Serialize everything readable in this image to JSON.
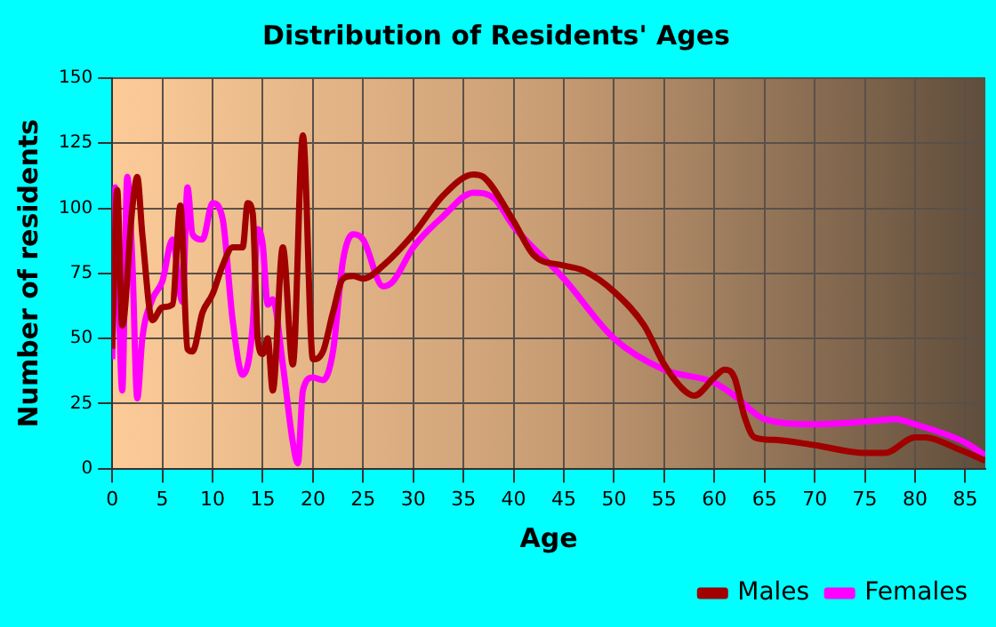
{
  "chart_data": {
    "type": "line",
    "title": "Distribution of Residents' Ages",
    "xlabel": "Age",
    "ylabel": "Number of residents",
    "xlim": [
      0,
      87
    ],
    "xticks": [
      0,
      5,
      10,
      15,
      20,
      25,
      30,
      35,
      40,
      45,
      50,
      55,
      60,
      65,
      70,
      75,
      80,
      85
    ],
    "ylim": [
      0,
      150
    ],
    "yticks": [
      0,
      25,
      50,
      75,
      100,
      125,
      150
    ],
    "grid": true,
    "legend": "bottom right",
    "marker": "none",
    "line_style": "solid",
    "series": [
      {
        "name": "Males",
        "color": "#a00000",
        "x": [
          0,
          0.5,
          1,
          2,
          2.5,
          3,
          4,
          5,
          6,
          6.8,
          7.5,
          8,
          9,
          10,
          11,
          12,
          13,
          13.5,
          14,
          14.5,
          15,
          15.5,
          16,
          17,
          18,
          19,
          20,
          21,
          22,
          23,
          24,
          25,
          27,
          30,
          33,
          36,
          37,
          40,
          42,
          45,
          47,
          50,
          53,
          55,
          57,
          58,
          60,
          61,
          62,
          63,
          64,
          66,
          70,
          75,
          77,
          80,
          81,
          84,
          87
        ],
        "values": [
          46,
          107,
          55,
          100,
          112,
          90,
          57,
          62,
          63,
          101,
          46,
          45,
          60,
          67,
          78,
          85,
          85,
          102,
          98,
          50,
          44,
          50,
          30,
          85,
          40,
          128,
          42,
          45,
          60,
          73,
          74,
          73,
          78,
          90,
          105,
          113,
          112,
          95,
          82,
          78,
          76,
          68,
          55,
          40,
          30,
          28,
          35,
          38,
          35,
          20,
          12,
          11,
          9,
          6,
          6,
          12,
          12,
          8,
          3
        ]
      },
      {
        "name": "Females",
        "color": "#ff00ff",
        "x": [
          0,
          0.3,
          1,
          1.5,
          2,
          2.5,
          3,
          4,
          5,
          6,
          7,
          7.5,
          8,
          9,
          10,
          11,
          12,
          13,
          14,
          14.5,
          15,
          15.5,
          16,
          17,
          18,
          18.5,
          19,
          20,
          21,
          22,
          23,
          24,
          25,
          27,
          28,
          30,
          33,
          36,
          38,
          40,
          45,
          50,
          55,
          60,
          62,
          65,
          70,
          75,
          78,
          80,
          85,
          87
        ],
        "values": [
          42,
          108,
          30,
          112,
          80,
          27,
          50,
          65,
          72,
          88,
          64,
          108,
          90,
          88,
          102,
          96,
          57,
          36,
          55,
          92,
          86,
          63,
          65,
          40,
          10,
          2,
          30,
          35,
          34,
          45,
          80,
          90,
          88,
          70,
          72,
          85,
          97,
          106,
          104,
          93,
          73,
          50,
          38,
          33,
          28,
          19,
          17,
          18,
          19,
          17,
          10,
          5
        ]
      }
    ]
  }
}
